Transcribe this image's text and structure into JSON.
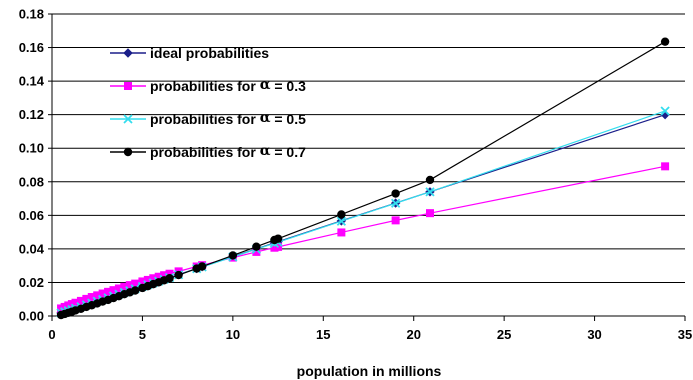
{
  "chart_data": {
    "type": "line",
    "title": "",
    "xlabel": "population in millions",
    "ylabel": "",
    "xlim": [
      0,
      35
    ],
    "ylim": [
      0,
      0.18
    ],
    "x_ticks": [
      "0",
      "5",
      "10",
      "15",
      "20",
      "25",
      "30",
      "35"
    ],
    "y_ticks": [
      "0.00",
      "0.02",
      "0.04",
      "0.06",
      "0.08",
      "0.10",
      "0.12",
      "0.14",
      "0.16",
      "0.18"
    ],
    "grid": "horizontal",
    "legend_position": "top-left",
    "series": [
      {
        "name": "ideal probabilities",
        "legend_prefix": "ideal probabilities",
        "legend_alpha": "",
        "legend_suffix": "",
        "color": "#1b1f8a",
        "marker": "diamond",
        "x": [
          0.5,
          0.7,
          0.9,
          1.1,
          1.3,
          1.6,
          1.9,
          2.2,
          2.5,
          2.8,
          3.1,
          3.4,
          3.7,
          4.0,
          4.3,
          4.6,
          5.0,
          5.3,
          5.6,
          5.9,
          6.2,
          6.5,
          7.0,
          8.0,
          8.3,
          10.0,
          11.3,
          12.3,
          12.5,
          16.0,
          19.0,
          20.9,
          33.9
        ],
        "y": [
          0.0018,
          0.0025,
          0.0032,
          0.0039,
          0.0046,
          0.0057,
          0.0067,
          0.0078,
          0.0089,
          0.0099,
          0.011,
          0.0121,
          0.0131,
          0.0142,
          0.0152,
          0.0163,
          0.0177,
          0.0188,
          0.0198,
          0.0209,
          0.022,
          0.023,
          0.0248,
          0.0283,
          0.0294,
          0.0354,
          0.04,
          0.0436,
          0.0443,
          0.0567,
          0.0673,
          0.074,
          0.12
        ]
      },
      {
        "name": "probabilities for α = 0.3",
        "legend_prefix": "probabilities for ",
        "legend_alpha": "α",
        "legend_suffix": " = 0.3",
        "color": "#ff00ff",
        "marker": "square",
        "x": [
          0.5,
          0.7,
          0.9,
          1.1,
          1.3,
          1.6,
          1.9,
          2.2,
          2.5,
          2.8,
          3.1,
          3.4,
          3.7,
          4.0,
          4.3,
          4.6,
          5.0,
          5.3,
          5.6,
          5.9,
          6.2,
          6.5,
          7.0,
          8.0,
          8.3,
          10.0,
          11.3,
          12.3,
          12.5,
          16.0,
          19.0,
          20.9,
          33.9
        ],
        "y": [
          0.0045,
          0.0054,
          0.0063,
          0.0071,
          0.0079,
          0.009,
          0.0102,
          0.0113,
          0.0123,
          0.0134,
          0.0144,
          0.0154,
          0.0164,
          0.0174,
          0.0184,
          0.0193,
          0.0206,
          0.0215,
          0.0225,
          0.0234,
          0.0243,
          0.0252,
          0.0266,
          0.0295,
          0.0303,
          0.0348,
          0.0382,
          0.0407,
          0.0412,
          0.0498,
          0.057,
          0.0613,
          0.0892
        ]
      },
      {
        "name": "probabilities for α = 0.5",
        "legend_prefix": "probabilities for ",
        "legend_alpha": "α",
        "legend_suffix": " = 0.5",
        "color": "#33ddee",
        "marker": "x",
        "x": [
          0.5,
          0.7,
          0.9,
          1.1,
          1.3,
          1.6,
          1.9,
          2.2,
          2.5,
          2.8,
          3.1,
          3.4,
          3.7,
          4.0,
          4.3,
          4.6,
          5.0,
          5.3,
          5.6,
          5.9,
          6.2,
          6.5,
          7.0,
          8.0,
          8.3,
          10.0,
          11.3,
          12.3,
          12.5,
          16.0,
          19.0,
          20.9,
          33.9
        ],
        "y": [
          0.0018,
          0.0025,
          0.0032,
          0.0039,
          0.0046,
          0.0056,
          0.0067,
          0.0077,
          0.0088,
          0.0098,
          0.0109,
          0.012,
          0.013,
          0.0141,
          0.0151,
          0.0162,
          0.0176,
          0.0186,
          0.0197,
          0.0207,
          0.0218,
          0.0229,
          0.0246,
          0.0282,
          0.0292,
          0.0352,
          0.0398,
          0.0433,
          0.044,
          0.0565,
          0.0672,
          0.074,
          0.1222
        ]
      },
      {
        "name": "probabilities for α = 0.7",
        "legend_prefix": "probabilities for ",
        "legend_alpha": "α",
        "legend_suffix": " = 0.7",
        "color": "#000000",
        "marker": "circle",
        "x": [
          0.5,
          0.7,
          0.9,
          1.1,
          1.3,
          1.6,
          1.9,
          2.2,
          2.5,
          2.8,
          3.1,
          3.4,
          3.7,
          4.0,
          4.3,
          4.6,
          5.0,
          5.3,
          5.6,
          5.9,
          6.2,
          6.5,
          7.0,
          8.0,
          8.3,
          10.0,
          11.3,
          12.3,
          12.5,
          16.0,
          19.0,
          20.9,
          33.9
        ],
        "y": [
          0.0006,
          0.0012,
          0.0019,
          0.0026,
          0.0033,
          0.0043,
          0.0054,
          0.0064,
          0.0075,
          0.0086,
          0.0096,
          0.0107,
          0.0118,
          0.013,
          0.0141,
          0.0152,
          0.0167,
          0.0178,
          0.019,
          0.0201,
          0.0213,
          0.0225,
          0.0244,
          0.0283,
          0.0295,
          0.0361,
          0.0413,
          0.0453,
          0.0461,
          0.0605,
          0.073,
          0.0811,
          0.1635
        ]
      }
    ]
  }
}
